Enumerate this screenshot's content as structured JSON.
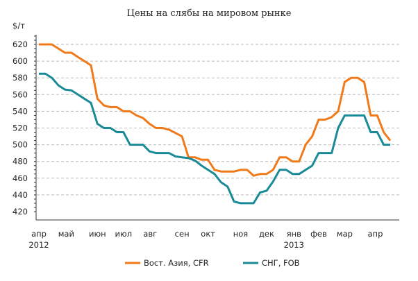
{
  "chart_data": {
    "type": "line",
    "title": "Цены на слябы на мировом рынке",
    "ylabel": "$/т",
    "xlabel": "",
    "ylim": [
      420,
      630
    ],
    "yticks": [
      420,
      440,
      460,
      480,
      500,
      520,
      540,
      560,
      580,
      600,
      620
    ],
    "grid": true,
    "x_unit": "weeks since early April 2012",
    "month_ticks": [
      {
        "label": "апр",
        "week": 0,
        "year": "2012"
      },
      {
        "label": "май",
        "week": 4.2
      },
      {
        "label": "июн",
        "week": 9
      },
      {
        "label": "июл",
        "week": 13
      },
      {
        "label": "авг",
        "week": 17.1
      },
      {
        "label": "сен",
        "week": 22
      },
      {
        "label": "окт",
        "week": 26
      },
      {
        "label": "ноя",
        "week": 31
      },
      {
        "label": "дек",
        "week": 35
      },
      {
        "label": "янв",
        "week": 39.2,
        "year": "2013"
      },
      {
        "label": "фев",
        "week": 43
      },
      {
        "label": "мар",
        "week": 47
      },
      {
        "label": "апр",
        "week": 51.7
      }
    ],
    "legend_position": "bottom",
    "series": [
      {
        "name": "Вост. Азия, CFR",
        "color": "#f07a1a",
        "values": [
          620,
          620,
          620,
          615,
          610,
          610,
          605,
          600,
          595,
          555,
          547,
          545,
          545,
          540,
          540,
          535,
          532,
          525,
          520,
          520,
          518,
          514,
          510,
          485,
          485,
          482,
          482,
          470,
          468,
          468,
          468,
          470,
          470,
          463,
          465,
          465,
          470,
          485,
          485,
          480,
          480,
          500,
          510,
          530,
          530,
          533,
          540,
          575,
          580,
          580,
          575,
          535,
          535,
          515,
          505
        ]
      },
      {
        "name": "СНГ, FOB",
        "color": "#1a8a96",
        "values": [
          585,
          585,
          580,
          571,
          566,
          565,
          560,
          555,
          550,
          525,
          520,
          520,
          515,
          515,
          500,
          500,
          500,
          492,
          490,
          490,
          490,
          486,
          485,
          484,
          481,
          475,
          470,
          465,
          455,
          450,
          432,
          430,
          430,
          430,
          443,
          445,
          456,
          470,
          470,
          465,
          465,
          470,
          475,
          490,
          490,
          490,
          520,
          535,
          535,
          535,
          535,
          515,
          515,
          500,
          500
        ]
      }
    ]
  }
}
